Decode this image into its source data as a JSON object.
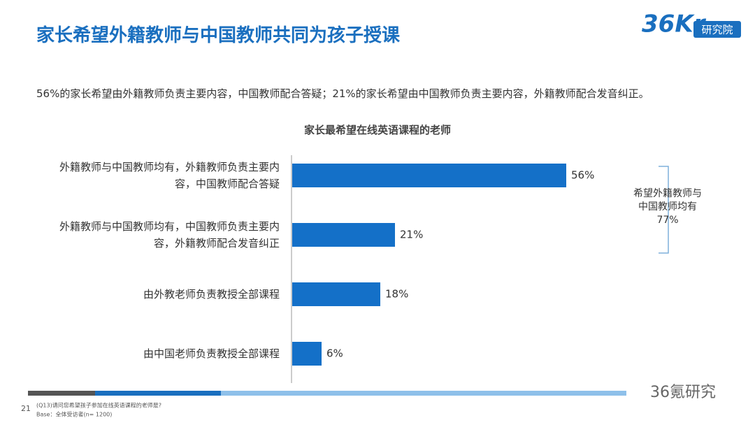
{
  "header": {
    "title": "家长希望外籍教师与中国教师共同为孩子授课",
    "logo": "36Kr",
    "logo_badge": "研究院"
  },
  "subtitle": "56%的家长希望由外籍教师负责主要内容，中国教师配合答疑；21%的家长希望由中国教师负责主要内容，外籍教师配合发音纠正。",
  "chart_data": {
    "type": "bar",
    "orientation": "horizontal",
    "title": "家长最希望在线英语课程的老师",
    "categories": [
      "外籍教师与中国教师均有，外籍教师负责主要内容，中国教师配合答疑",
      "外籍教师与中国教师均有，中国教师负责主要内容，外籍教师配合发音纠正",
      "由外教老师负责教授全部课程",
      "由中国老师负责教授全部课程"
    ],
    "values": [
      56,
      21,
      18,
      6
    ],
    "value_labels": [
      "56%",
      "21%",
      "18%",
      "6%"
    ],
    "color": "#1470c8",
    "annotation": [
      "希望外籍教师与",
      "中国教师均有",
      "77%"
    ]
  },
  "footer": {
    "page": "21",
    "note": "(Q13)请问您希望孩子参加在线英语课程的老师是?",
    "base": "Base：全体受访者(n= 1200)",
    "watermark": "36氪研究"
  }
}
